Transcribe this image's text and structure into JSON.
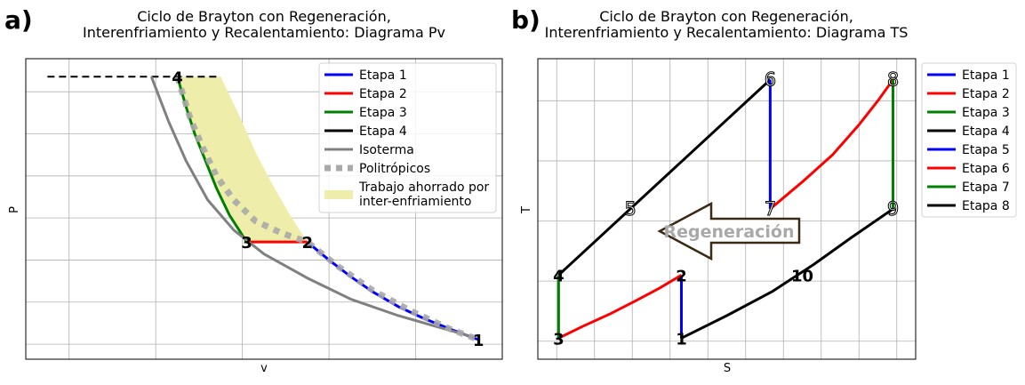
{
  "chart_data": [
    {
      "type": "line",
      "panel_label": "a)",
      "title_lines": [
        "Ciclo de Brayton con Regeneración,",
        "Interenfriamiento y Recalentamiento: Diagrama Pv"
      ],
      "xlabel": "v",
      "ylabel": "P",
      "ticks_visible": false,
      "grid": true,
      "xlim": [
        0,
        11
      ],
      "ylim": [
        0,
        10
      ],
      "legend_position": "upper right",
      "legend": [
        {
          "label": "Etapa 1",
          "color": "#0000ff",
          "style": "solid"
        },
        {
          "label": "Etapa 2",
          "color": "#ff0000",
          "style": "solid"
        },
        {
          "label": "Etapa 3",
          "color": "#008000",
          "style": "solid"
        },
        {
          "label": "Etapa 4",
          "color": "#000000",
          "style": "solid"
        },
        {
          "label": "Isoterma",
          "color": "#808080",
          "style": "solid"
        },
        {
          "label": "Politrópicos",
          "color": "#a9a9a9",
          "style": "dotted"
        },
        {
          "label": "Trabajo ahorrado por\ninter-enfriamiento",
          "color": "#eeeeaa",
          "style": "fill"
        }
      ],
      "points": [
        {
          "label": "1",
          "x": 10.45,
          "y": 0.65
        },
        {
          "label": "2",
          "x": 6.5,
          "y": 3.9
        },
        {
          "label": "3",
          "x": 5.1,
          "y": 3.9
        },
        {
          "label": "4",
          "x": 3.5,
          "y": 9.4
        }
      ],
      "series": [
        {
          "name": "Etapa 1",
          "color": "#0000ff",
          "x": [
            10.45,
            9.8,
            9.2,
            8.6,
            8.0,
            7.5,
            7.0,
            6.5
          ],
          "y": [
            0.65,
            1.0,
            1.35,
            1.75,
            2.25,
            2.75,
            3.3,
            3.9
          ]
        },
        {
          "name": "Etapa 2",
          "color": "#ff0000",
          "x": [
            5.1,
            6.5
          ],
          "y": [
            3.9,
            3.9
          ]
        },
        {
          "name": "Etapa 3",
          "color": "#008000",
          "x": [
            5.1,
            4.7,
            4.4,
            4.15,
            3.9,
            3.7,
            3.5
          ],
          "y": [
            3.9,
            4.8,
            5.7,
            6.6,
            7.5,
            8.4,
            9.4
          ]
        },
        {
          "name": "Etapa 4",
          "color": "#000000",
          "style": "dashed",
          "x": [
            0.5,
            4.5
          ],
          "y": [
            9.4,
            9.4
          ]
        },
        {
          "name": "Isoterma",
          "color": "#808080",
          "x": [
            2.9,
            3.3,
            3.7,
            4.2,
            4.8,
            5.5,
            6.5,
            7.5,
            8.6,
            10.3
          ],
          "y": [
            9.4,
            7.9,
            6.6,
            5.3,
            4.3,
            3.5,
            2.7,
            2.0,
            1.45,
            0.75
          ]
        },
        {
          "name": "Politrópicos",
          "color": "#a9a9a9",
          "style": "dotted",
          "x": [
            3.5,
            3.8,
            4.1,
            4.4,
            4.8,
            5.3,
            5.9,
            6.5,
            7.2,
            8.0,
            8.9,
            9.8,
            10.45
          ],
          "y": [
            9.4,
            8.0,
            7.0,
            6.1,
            5.3,
            4.6,
            4.2,
            3.9,
            3.1,
            2.3,
            1.6,
            1.0,
            0.65
          ]
        }
      ],
      "shaded_region": {
        "name": "Trabajo ahorrado por inter-enfriamiento",
        "color": "#eeeeaa",
        "upper_x": [
          3.5,
          4.5,
          4.9,
          5.3,
          5.7,
          6.1,
          6.5
        ],
        "upper_y": [
          9.4,
          9.4,
          8.2,
          6.9,
          5.8,
          4.8,
          3.9
        ],
        "lower_x": [
          5.1,
          4.7,
          4.4,
          4.15,
          3.9,
          3.7,
          3.5
        ],
        "lower_y": [
          3.9,
          4.8,
          5.7,
          6.6,
          7.5,
          8.4,
          9.4
        ]
      }
    },
    {
      "type": "line",
      "panel_label": "b)",
      "title_lines": [
        "Ciclo de Brayton con Regeneración,",
        "Interenfriamiento y Recalentamiento: Diagrama TS"
      ],
      "xlabel": "S",
      "ylabel": "T",
      "ticks_visible": false,
      "grid": true,
      "xlim": [
        0,
        10
      ],
      "ylim": [
        0,
        10
      ],
      "legend_position": "outside right",
      "legend": [
        {
          "label": "Etapa 1",
          "color": "#0000ff"
        },
        {
          "label": "Etapa 2",
          "color": "#ff0000"
        },
        {
          "label": "Etapa 3",
          "color": "#008000"
        },
        {
          "label": "Etapa 4",
          "color": "#000000"
        },
        {
          "label": "Etapa 5",
          "color": "#0000ff"
        },
        {
          "label": "Etapa 6",
          "color": "#ff0000"
        },
        {
          "label": "Etapa 7",
          "color": "#008000"
        },
        {
          "label": "Etapa 8",
          "color": "#000000"
        }
      ],
      "points": [
        {
          "label": "1",
          "x": 3.8,
          "y": 0.7,
          "style": "bold"
        },
        {
          "label": "2",
          "x": 3.8,
          "y": 2.8,
          "style": "bold"
        },
        {
          "label": "3",
          "x": 0.55,
          "y": 0.7,
          "style": "bold"
        },
        {
          "label": "4",
          "x": 0.55,
          "y": 2.8,
          "style": "bold"
        },
        {
          "label": "5",
          "x": 2.45,
          "y": 5.0,
          "style": "hollow"
        },
        {
          "label": "6",
          "x": 6.15,
          "y": 9.3,
          "style": "hollow"
        },
        {
          "label": "7",
          "x": 6.15,
          "y": 5.0,
          "style": "hollow"
        },
        {
          "label": "8",
          "x": 9.4,
          "y": 9.3,
          "style": "hollow"
        },
        {
          "label": "9",
          "x": 9.4,
          "y": 5.0,
          "style": "hollow"
        },
        {
          "label": "10",
          "x": 7.0,
          "y": 2.8,
          "style": "bold"
        }
      ],
      "series": [
        {
          "name": "Etapa 1",
          "color": "#0000ff",
          "x": [
            3.8,
            3.8
          ],
          "y": [
            0.7,
            2.8
          ]
        },
        {
          "name": "Etapa 2",
          "color": "#ff0000",
          "x": [
            0.55,
            1.2,
            1.9,
            2.6,
            3.2,
            3.8
          ],
          "y": [
            0.7,
            1.1,
            1.5,
            1.95,
            2.35,
            2.8
          ]
        },
        {
          "name": "Etapa 3",
          "color": "#008000",
          "x": [
            0.55,
            0.55
          ],
          "y": [
            0.7,
            2.8
          ]
        },
        {
          "name": "Etapa 4",
          "color": "#000000",
          "x": [
            0.55,
            6.15
          ],
          "y": [
            2.8,
            9.3
          ]
        },
        {
          "name": "Etapa 5",
          "color": "#0000ff",
          "x": [
            6.15,
            6.15
          ],
          "y": [
            9.3,
            5.0
          ]
        },
        {
          "name": "Etapa 6",
          "color": "#ff0000",
          "x": [
            6.15,
            7.0,
            7.8,
            8.5,
            9.0,
            9.4
          ],
          "y": [
            5.0,
            5.9,
            6.8,
            7.8,
            8.6,
            9.3
          ]
        },
        {
          "name": "Etapa 7",
          "color": "#008000",
          "x": [
            9.4,
            9.4
          ],
          "y": [
            9.3,
            5.0
          ]
        },
        {
          "name": "Etapa 8",
          "color": "#000000",
          "x": [
            3.8,
            5.0,
            6.2,
            7.3,
            8.3,
            9.4
          ],
          "y": [
            0.7,
            1.45,
            2.25,
            3.15,
            4.05,
            5.0
          ]
        }
      ],
      "annotation": {
        "text": "Regeneración",
        "shape": "left-arrow",
        "border_color": "#3b2a14",
        "text_color": "#a9a9a9"
      }
    }
  ]
}
